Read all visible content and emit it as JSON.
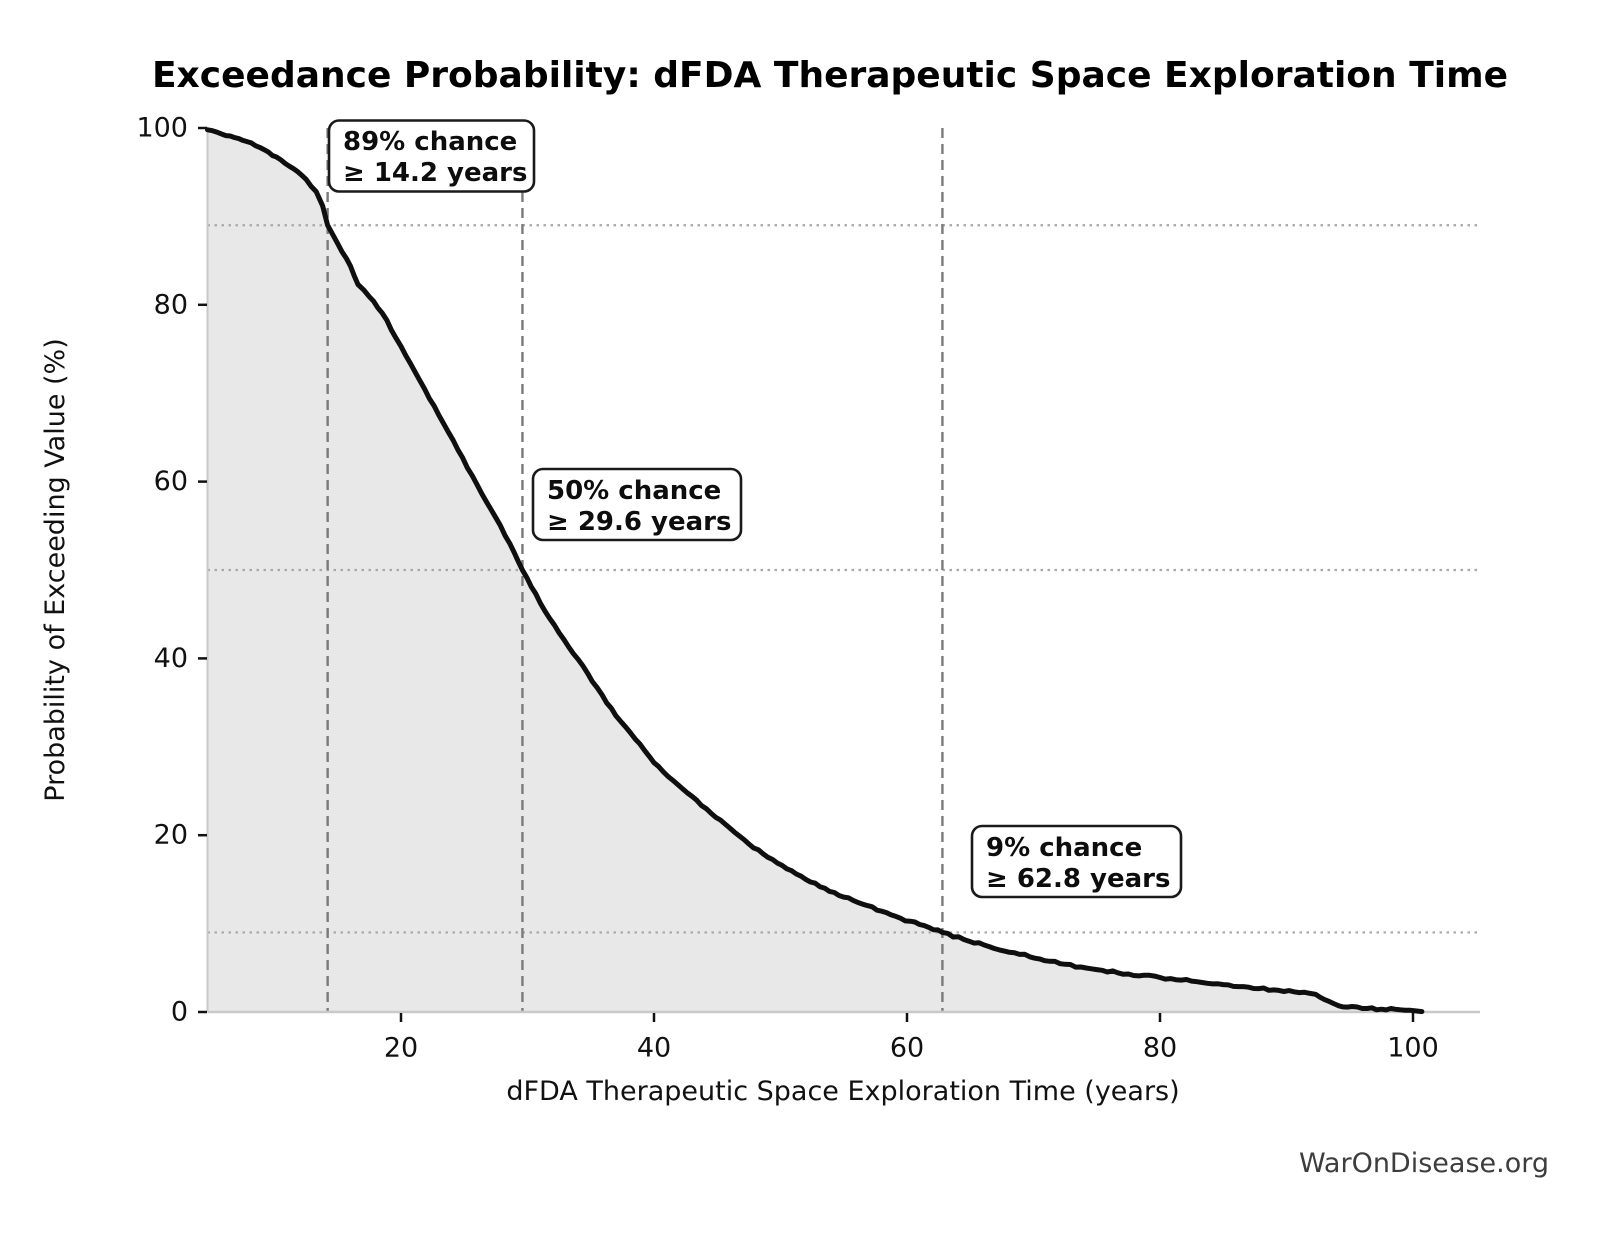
{
  "chart_data": {
    "type": "line",
    "title": "Exceedance Probability: dFDA Therapeutic Space Exploration Time",
    "xlabel": "dFDA Therapeutic Space Exploration Time (years)",
    "ylabel": "Probability of Exceeding Value (%)",
    "watermark": "WarOnDisease.org",
    "xlim": [
      4.6,
      105.3
    ],
    "ylim": [
      0,
      100
    ],
    "x_ticks": [
      20,
      40,
      60,
      80,
      100
    ],
    "y_ticks": [
      0,
      20,
      40,
      60,
      80,
      100
    ],
    "grid": "dotted horizontal lines at annotated probabilities only",
    "legend": "none",
    "curve_name": "exceedance-probability-curve",
    "curve_points_year_pct": [
      [
        4.7,
        99.8
      ],
      [
        5.5,
        99.5
      ],
      [
        6.5,
        99.1
      ],
      [
        7.5,
        98.6
      ],
      [
        8.5,
        98.0
      ],
      [
        9.5,
        97.3
      ],
      [
        10.5,
        96.4
      ],
      [
        11.5,
        95.4
      ],
      [
        12.5,
        94.2
      ],
      [
        13.3,
        92.8
      ],
      [
        13.8,
        91.2
      ],
      [
        14.2,
        89.0
      ],
      [
        15,
        86.9
      ],
      [
        16,
        84.4
      ],
      [
        16.6,
        82.3
      ],
      [
        17.5,
        80.9
      ],
      [
        18.5,
        79.1
      ],
      [
        20,
        75.3
      ],
      [
        21.5,
        71.4
      ],
      [
        23,
        67.5
      ],
      [
        24.5,
        63.6
      ],
      [
        26,
        59.7
      ],
      [
        27.5,
        55.9
      ],
      [
        28.6,
        53.0
      ],
      [
        29.6,
        50.0
      ],
      [
        31,
        46.3
      ],
      [
        32.5,
        42.9
      ],
      [
        34,
        39.9
      ],
      [
        35.5,
        36.7
      ],
      [
        37,
        33.5
      ],
      [
        38.5,
        30.9
      ],
      [
        40,
        28.2
      ],
      [
        41.5,
        26.2
      ],
      [
        43,
        24.4
      ],
      [
        44.5,
        22.5
      ],
      [
        46,
        20.8
      ],
      [
        47.5,
        19.0
      ],
      [
        49,
        17.5
      ],
      [
        50.5,
        16.2
      ],
      [
        52,
        15.0
      ],
      [
        53.5,
        14.0
      ],
      [
        55,
        13.0
      ],
      [
        56.5,
        12.2
      ],
      [
        58,
        11.4
      ],
      [
        59.5,
        10.6
      ],
      [
        61,
        9.9
      ],
      [
        62.8,
        9.0
      ],
      [
        64.5,
        8.2
      ],
      [
        66.5,
        7.4
      ],
      [
        68.5,
        6.7
      ],
      [
        70.5,
        6.0
      ],
      [
        72.5,
        5.4
      ],
      [
        75,
        4.8
      ],
      [
        77.5,
        4.3
      ],
      [
        80,
        3.9
      ],
      [
        82.5,
        3.5
      ],
      [
        85,
        3.1
      ],
      [
        87,
        2.8
      ],
      [
        89,
        2.5
      ],
      [
        91,
        2.2
      ],
      [
        92.3,
        2.0
      ],
      [
        93,
        1.4
      ],
      [
        93.8,
        0.9
      ],
      [
        94.8,
        0.55
      ],
      [
        96,
        0.4
      ],
      [
        97.5,
        0.32
      ],
      [
        99,
        0.25
      ],
      [
        100.2,
        0.12
      ],
      [
        100.7,
        0.05
      ]
    ],
    "annotations": [
      {
        "label_line1": "89% chance",
        "label_line2": "≥ 14.2 years",
        "probability_pct": 89,
        "years": 14.2
      },
      {
        "label_line1": "50% chance",
        "label_line2": "≥ 29.6 years",
        "probability_pct": 50,
        "years": 29.6
      },
      {
        "label_line1": "9% chance",
        "label_line2": "≥ 62.8 years",
        "probability_pct": 9,
        "years": 62.8
      }
    ],
    "colors": {
      "curve": "#0f0f0f",
      "fill_under_curve": "#e8e8e8",
      "dashed_marker_line": "#7a7a7a",
      "dotted_grid_line": "#a8a8a8",
      "axis_spine": "#c9c9c9",
      "tick_mark": "#111111",
      "watermark_text": "#3d3d3d",
      "background": "#ffffff"
    }
  }
}
